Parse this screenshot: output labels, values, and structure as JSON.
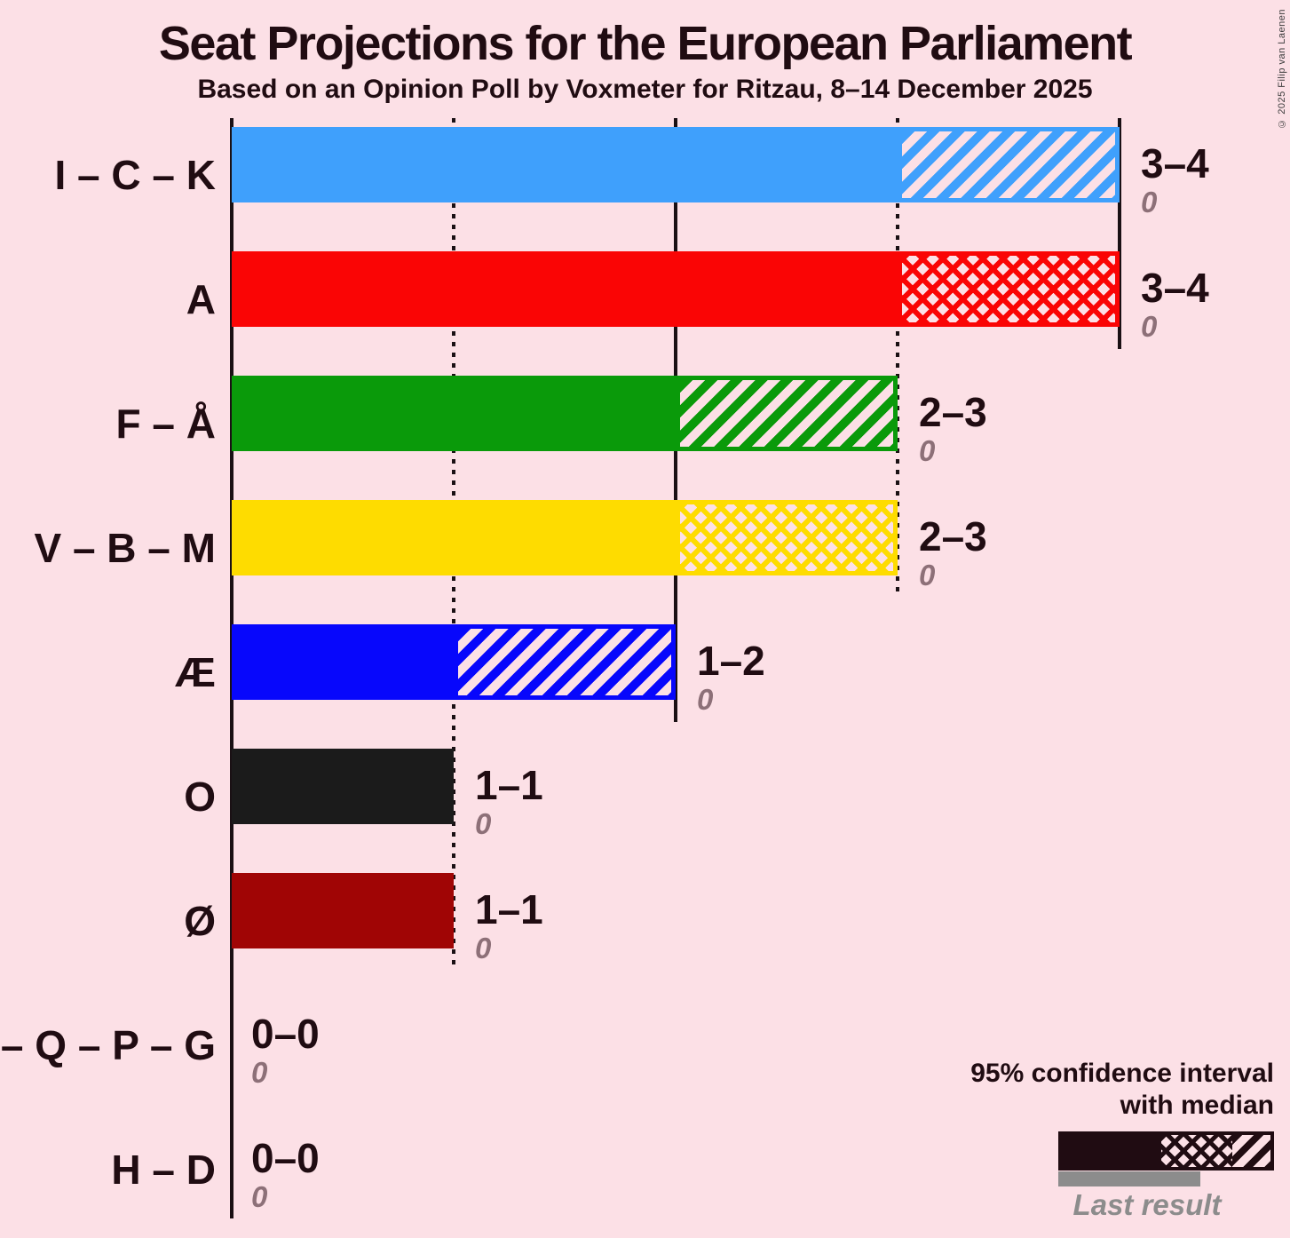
{
  "header": {
    "title": "Seat Projections for the European Parliament",
    "subtitle": "Based on an Opinion Poll by Voxmeter for Ritzau, 8–14 December 2025"
  },
  "copyright": "© 2025 Filip van Laenen",
  "colors": {
    "background": "#FCE0E6",
    "text_dark": "#200C12",
    "axis": "#1A1014",
    "last_result_gray": "#8D7078",
    "legend_gray": "#8C8C8C"
  },
  "legend": {
    "ci_line1": "95% confidence interval",
    "ci_line2": "with median",
    "last_result": "Last result"
  },
  "chart_data": {
    "type": "bar",
    "orientation": "horizontal",
    "x_unit": "seats",
    "xlim": [
      0,
      4.77
    ],
    "grid": "vertical-ticks",
    "ticks": [
      {
        "value": 1,
        "style": "dotted"
      },
      {
        "value": 2,
        "style": "solid"
      },
      {
        "value": 3,
        "style": "dotted"
      },
      {
        "value": 4,
        "style": "solid"
      }
    ],
    "categories": [
      "I – C – K",
      "A",
      "F – Å",
      "V – B – M",
      "Æ",
      "O",
      "Ø",
      "E – Q – P – G",
      "H – D"
    ],
    "series": [
      {
        "name": "95% CI low",
        "values": [
          3,
          3,
          2,
          2,
          1,
          1,
          1,
          0,
          0
        ]
      },
      {
        "name": "median",
        "values": [
          3,
          4,
          2,
          3,
          1,
          1,
          1,
          0,
          0
        ]
      },
      {
        "name": "95% CI high",
        "values": [
          4,
          4,
          3,
          3,
          2,
          1,
          1,
          0,
          0
        ]
      },
      {
        "name": "last result",
        "values": [
          0,
          0,
          0,
          0,
          0,
          0,
          0,
          0,
          0
        ]
      }
    ],
    "rows": [
      {
        "label": "I – C – K",
        "color": "#3FA0FC",
        "ci_low": 3,
        "median": 3,
        "ci_high": 4,
        "hatch": "diagonal",
        "value_label": "3–4",
        "last_result": "0"
      },
      {
        "label": "A",
        "color": "#FA0505",
        "ci_low": 3,
        "median": 4,
        "ci_high": 4,
        "hatch": "cross",
        "value_label": "3–4",
        "last_result": "0"
      },
      {
        "label": "F – Å",
        "color": "#0A9A0A",
        "ci_low": 2,
        "median": 2,
        "ci_high": 3,
        "hatch": "diagonal",
        "value_label": "2–3",
        "last_result": "0"
      },
      {
        "label": "V – B – M",
        "color": "#FEDC00",
        "ci_low": 2,
        "median": 3,
        "ci_high": 3,
        "hatch": "cross",
        "value_label": "2–3",
        "last_result": "0"
      },
      {
        "label": "Æ",
        "color": "#0707FC",
        "ci_low": 1,
        "median": 1,
        "ci_high": 2,
        "hatch": "diagonal",
        "value_label": "1–2",
        "last_result": "0"
      },
      {
        "label": "O",
        "color": "#1B1B1B",
        "ci_low": 1,
        "median": 1,
        "ci_high": 1,
        "hatch": "none",
        "value_label": "1–1",
        "last_result": "0"
      },
      {
        "label": "Ø",
        "color": "#A00505",
        "ci_low": 1,
        "median": 1,
        "ci_high": 1,
        "hatch": "none",
        "value_label": "1–1",
        "last_result": "0"
      },
      {
        "label": "E – Q – P – G",
        "color": null,
        "ci_low": 0,
        "median": 0,
        "ci_high": 0,
        "hatch": "none",
        "value_label": "0–0",
        "last_result": "0"
      },
      {
        "label": "H – D",
        "color": null,
        "ci_low": 0,
        "median": 0,
        "ci_high": 0,
        "hatch": "none",
        "value_label": "0–0",
        "last_result": "0"
      }
    ]
  }
}
